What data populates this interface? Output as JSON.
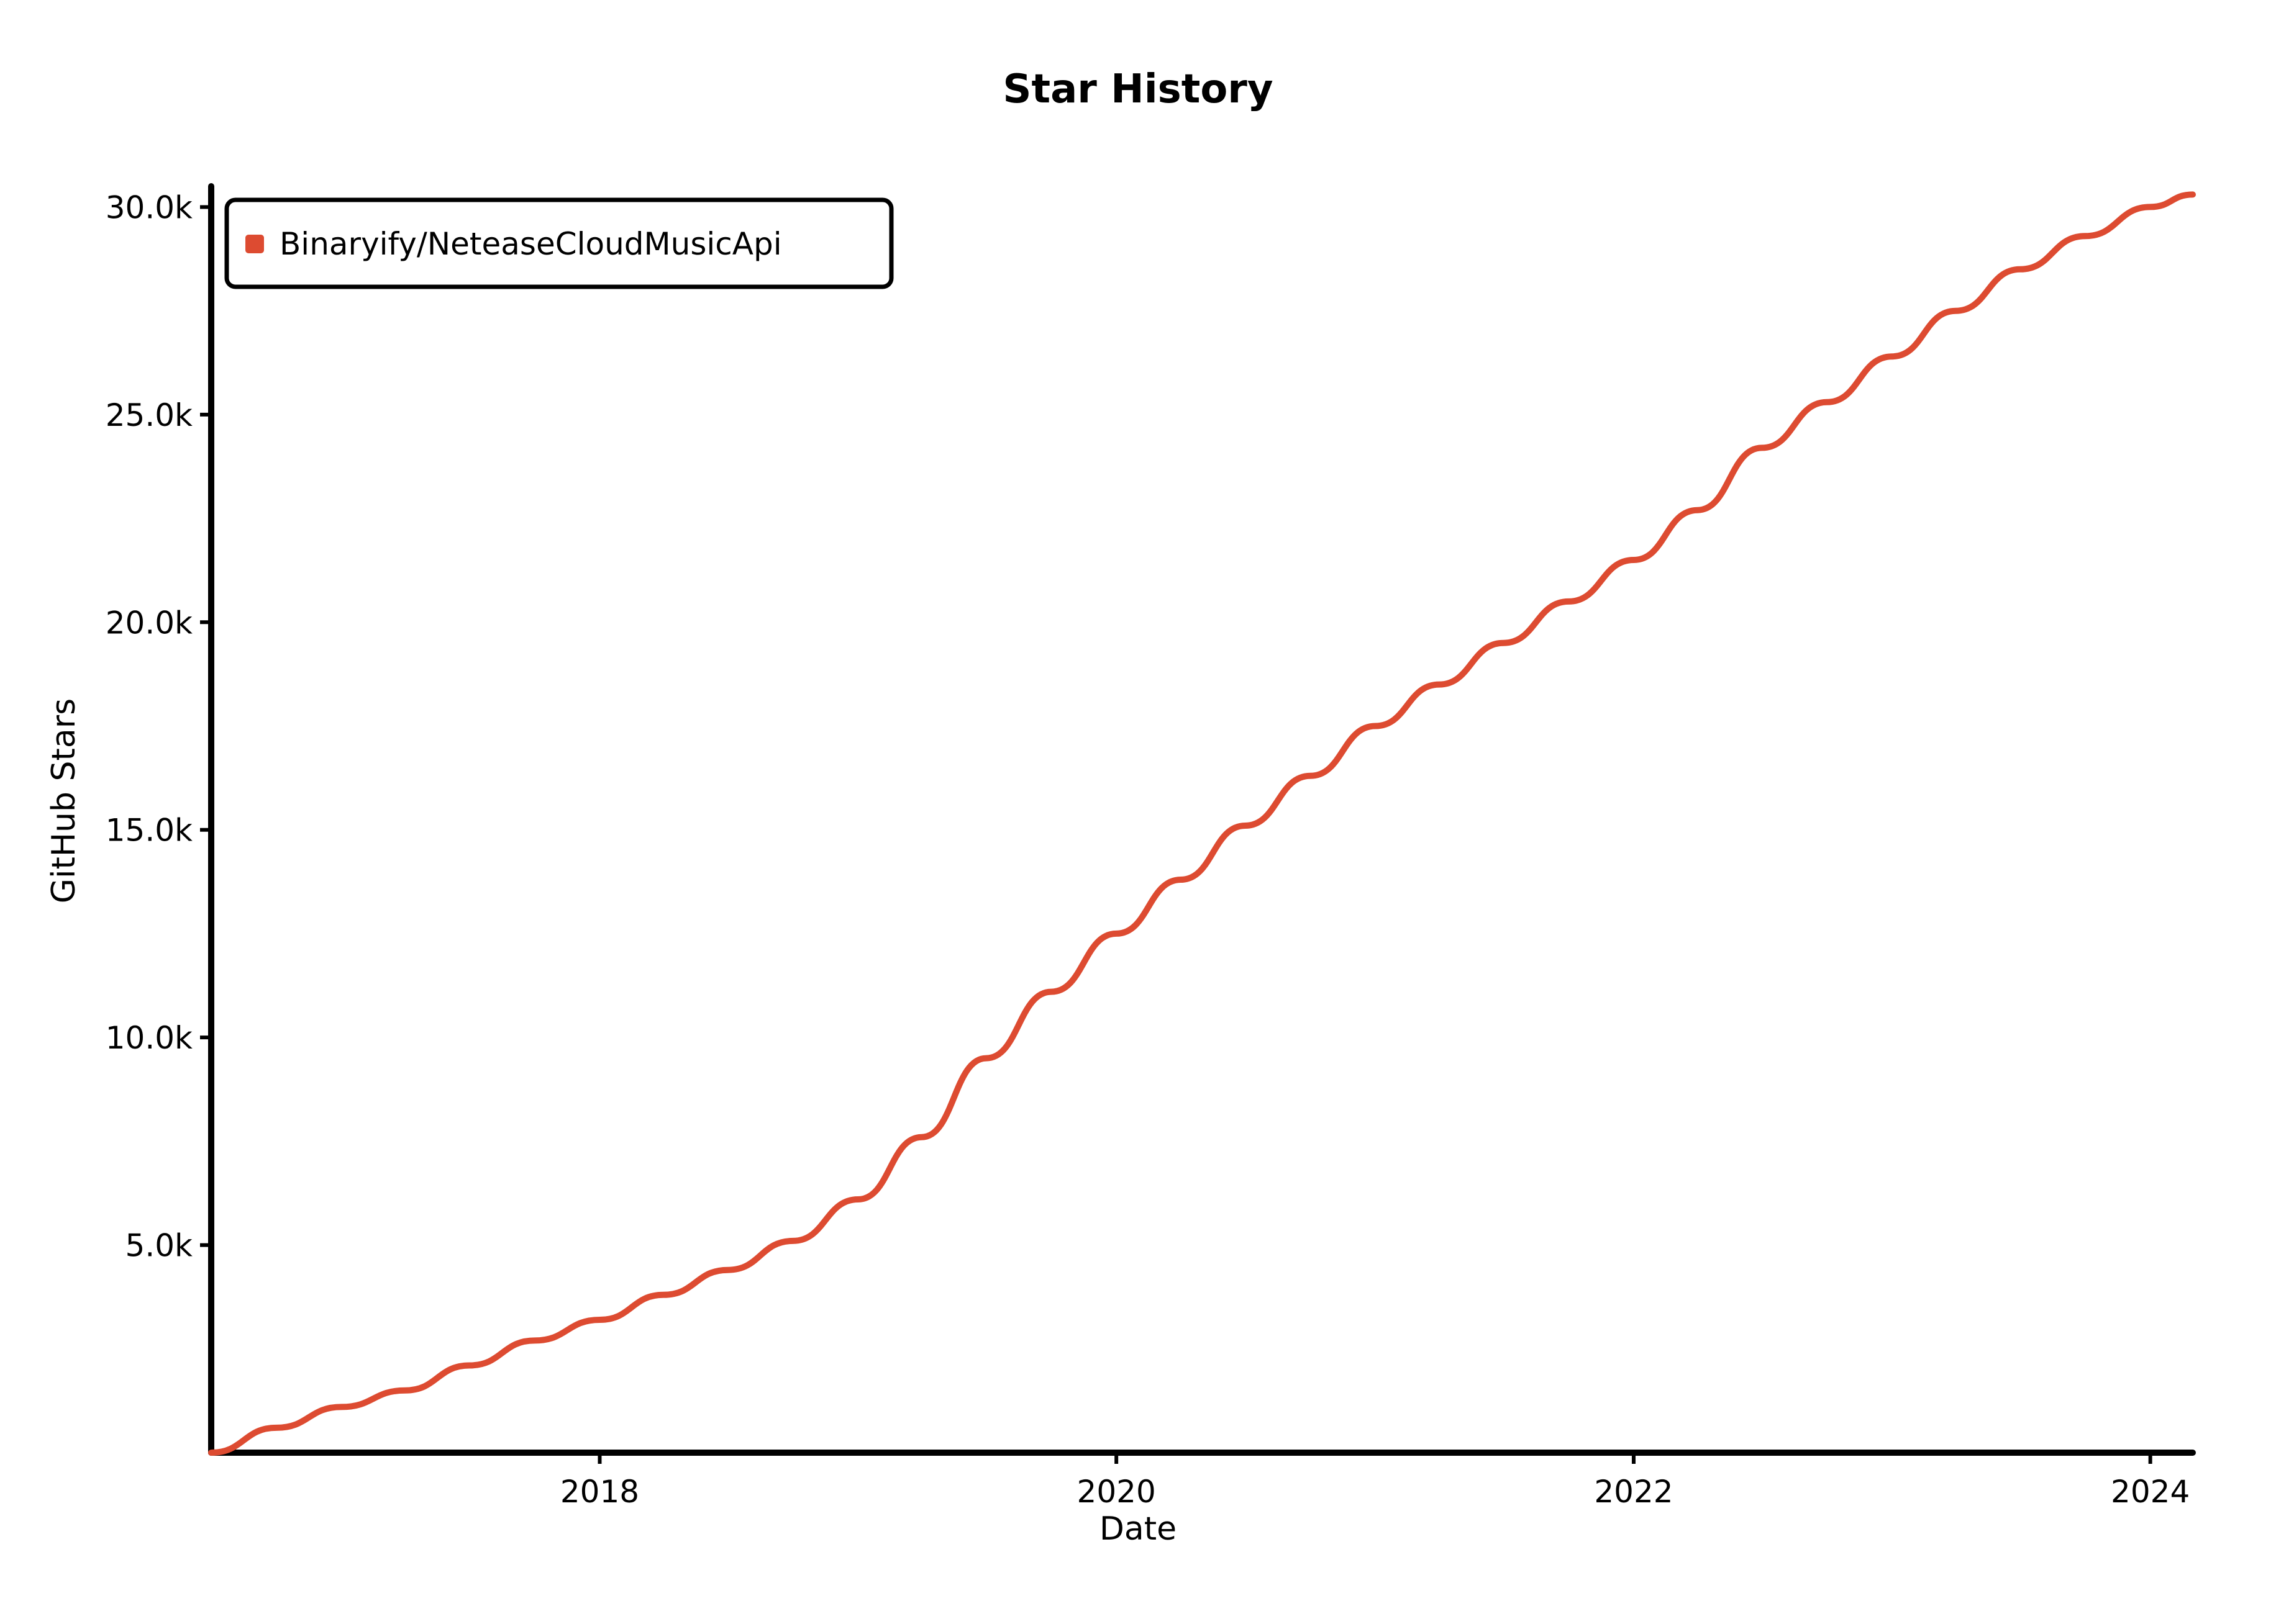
{
  "colors": {
    "series": "#dd4b31",
    "axis": "#000000",
    "background": "#ffffff"
  },
  "chart_data": {
    "type": "line",
    "title": "Star History",
    "xlabel": "Date",
    "ylabel": "GitHub Stars",
    "xlim": [
      "2016-07-01",
      "2024-03-01"
    ],
    "ylim": [
      0,
      30500
    ],
    "x_ticks": [
      "2018",
      "2020",
      "2022",
      "2024"
    ],
    "y_ticks": [
      "5.0k",
      "10.0k",
      "15.0k",
      "20.0k",
      "25.0k",
      "30.0k"
    ],
    "legend_position": "top-left",
    "grid": false,
    "series": [
      {
        "name": "Binaryify/NeteaseCloudMusicApi",
        "x": [
          "2016-07-01",
          "2016-10-01",
          "2017-01-01",
          "2017-04-01",
          "2017-07-01",
          "2017-10-01",
          "2018-01-01",
          "2018-04-01",
          "2018-07-01",
          "2018-10-01",
          "2019-01-01",
          "2019-04-01",
          "2019-07-01",
          "2019-10-01",
          "2020-01-01",
          "2020-04-01",
          "2020-07-01",
          "2020-10-01",
          "2021-01-01",
          "2021-04-01",
          "2021-07-01",
          "2021-10-01",
          "2022-01-01",
          "2022-04-01",
          "2022-07-01",
          "2022-10-01",
          "2023-01-01",
          "2023-04-01",
          "2023-07-01",
          "2023-10-01",
          "2024-01-01",
          "2024-03-01"
        ],
        "y": [
          0,
          600,
          1100,
          1500,
          2100,
          2700,
          3200,
          3800,
          4400,
          5100,
          6100,
          7600,
          9500,
          11100,
          12500,
          13800,
          15100,
          16300,
          17500,
          18500,
          19500,
          20500,
          21500,
          22700,
          24200,
          25300,
          26400,
          27500,
          28500,
          29300,
          30000,
          30300
        ]
      }
    ]
  }
}
